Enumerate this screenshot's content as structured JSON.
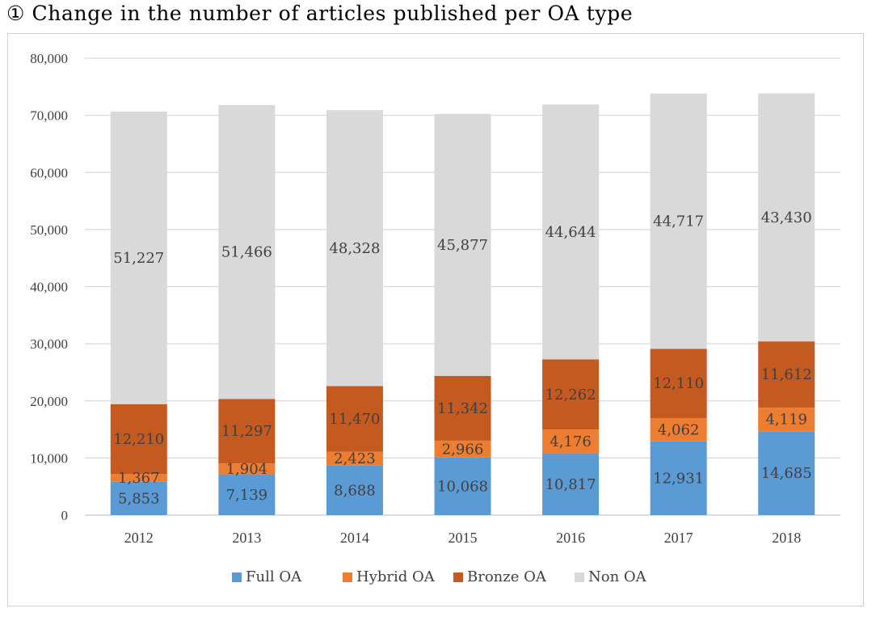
{
  "title": "① Change in the number of articles published per OA type",
  "chart_data": {
    "type": "bar",
    "stacked": true,
    "title": "① Change in the number of articles published per OA type",
    "xlabel": "",
    "ylabel": "",
    "ylim": [
      0,
      80000
    ],
    "yticks": [
      0,
      10000,
      20000,
      30000,
      40000,
      50000,
      60000,
      70000,
      80000
    ],
    "ytick_labels": [
      "0",
      "10,000",
      "20,000",
      "30,000",
      "40,000",
      "50,000",
      "60,000",
      "70,000",
      "80,000"
    ],
    "grid": true,
    "legend_position": "bottom",
    "categories": [
      "2012",
      "2013",
      "2014",
      "2015",
      "2016",
      "2017",
      "2018"
    ],
    "series": [
      {
        "name": "Full OA",
        "color": "#5b9bd5",
        "values": [
          5853,
          7139,
          8688,
          10068,
          10817,
          12931,
          14685
        ],
        "labels": [
          "5,853",
          "7,139",
          "8,688",
          "10,068",
          "10,817",
          "12,931",
          "14,685"
        ]
      },
      {
        "name": "Hybrid OA",
        "color": "#ed7d31",
        "values": [
          1367,
          1904,
          2423,
          2966,
          4176,
          4062,
          4119
        ],
        "labels": [
          "1,367",
          "1,904",
          "2,423",
          "2,966",
          "4,176",
          "4,062",
          "4,119"
        ]
      },
      {
        "name": "Bronze OA",
        "color": "#c55a20",
        "values": [
          12210,
          11297,
          11470,
          11342,
          12262,
          12110,
          11612
        ],
        "labels": [
          "12,210",
          "11,297",
          "11,470",
          "11,342",
          "12,262",
          "12,110",
          "11,612"
        ]
      },
      {
        "name": "Non OA",
        "color": "#d9d9d9",
        "values": [
          51227,
          51466,
          48328,
          45877,
          44644,
          44717,
          43430
        ],
        "labels": [
          "51,227",
          "51,466",
          "48,328",
          "45,877",
          "44,644",
          "44,717",
          "43,430"
        ]
      }
    ]
  }
}
